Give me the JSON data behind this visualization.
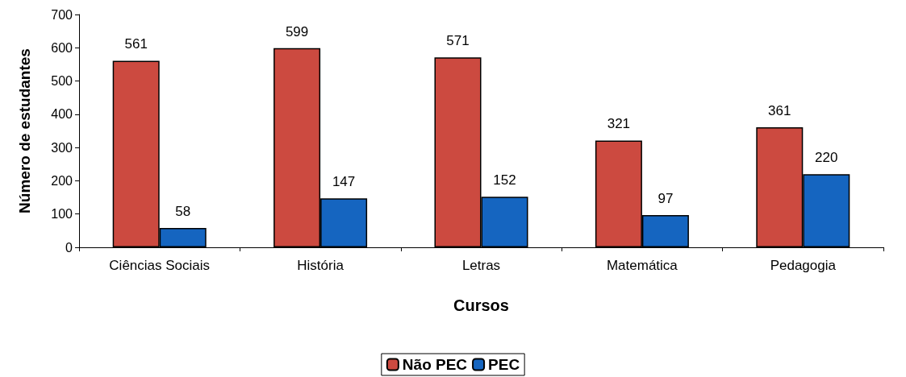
{
  "chart_data": {
    "type": "bar",
    "xlabel": "Cursos",
    "ylabel": "Número de estudantes",
    "categories": [
      "Ciências Sociais",
      "História",
      "Letras",
      "Matemática",
      "Pedagogia"
    ],
    "series": [
      {
        "name": "Não PEC",
        "color": "#cc4a40",
        "values": [
          561,
          599,
          571,
          321,
          361
        ]
      },
      {
        "name": "PEC",
        "color": "#1565c0",
        "values": [
          58,
          147,
          152,
          97,
          220
        ]
      }
    ],
    "ylim": [
      0,
      700
    ],
    "yticks": [
      0,
      100,
      200,
      300,
      400,
      500,
      600,
      700
    ],
    "grid": false,
    "legend": "bottom",
    "data_labels": true
  }
}
